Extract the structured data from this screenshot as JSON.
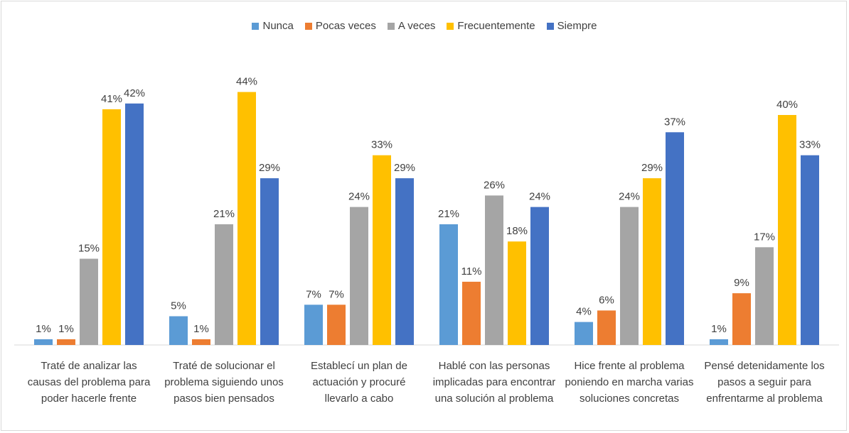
{
  "chart_data": {
    "type": "bar",
    "categories": [
      "Traté de analizar las causas del problema para poder hacerle frente",
      "Traté de solucionar el problema siguiendo unos pasos bien pensados",
      "Establecí un plan de actuación y procuré llevarlo a cabo",
      "Hablé con las personas implicadas para encontrar una solución al problema",
      "Hice frente al problema poniendo en marcha varias soluciones concretas",
      "Pensé detenidamente los pasos a seguir para enfrentarme al problema"
    ],
    "series": [
      {
        "name": "Nunca",
        "color": "#5b9bd5",
        "values": [
          1,
          5,
          7,
          21,
          4,
          1
        ],
        "value_labels": [
          "1%",
          "5%",
          "7%",
          "21%",
          "4%",
          "1%"
        ]
      },
      {
        "name": "Pocas veces",
        "color": "#ed7d31",
        "values": [
          1,
          1,
          7,
          11,
          6,
          9
        ],
        "value_labels": [
          "1%",
          "1%",
          "7%",
          "11%",
          "6%",
          "9%"
        ]
      },
      {
        "name": "A veces",
        "color": "#a5a5a5",
        "values": [
          15,
          21,
          24,
          26,
          24,
          17
        ],
        "value_labels": [
          "15%",
          "21%",
          "24%",
          "26%",
          "24%",
          "17%"
        ]
      },
      {
        "name": "Frecuentemente",
        "color": "#ffc000",
        "values": [
          41,
          44,
          33,
          18,
          29,
          40
        ],
        "value_labels": [
          "41%",
          "44%",
          "33%",
          "18%",
          "29%",
          "40%"
        ]
      },
      {
        "name": "Siempre",
        "color": "#4472c4",
        "values": [
          42,
          29,
          29,
          24,
          37,
          33
        ],
        "value_labels": [
          "42%",
          "29%",
          "29%",
          "24%",
          "37%",
          "33%"
        ]
      }
    ],
    "legend": "top"
  }
}
